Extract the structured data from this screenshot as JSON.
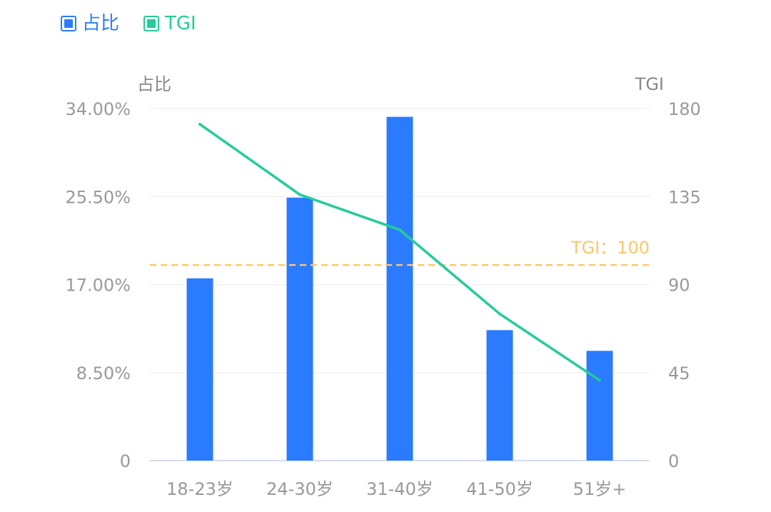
{
  "colors": {
    "bar": "#2B7BFF",
    "line": "#23CC9A",
    "reference": "#FFC766",
    "axis_text": "#999999",
    "grid": "#EEF1F6",
    "axis_line": "#D6DCE8"
  },
  "legend": {
    "bar_label": "占比",
    "line_label": "TGI"
  },
  "chart_data": {
    "type": "bar",
    "categories": [
      "18-23岁",
      "24-30岁",
      "31-40岁",
      "41-50岁",
      "51岁+"
    ],
    "series": [
      {
        "name": "占比",
        "type": "bar",
        "axis": "left",
        "values": [
          17.6,
          25.4,
          33.2,
          12.6,
          10.6
        ]
      },
      {
        "name": "TGI",
        "type": "line",
        "axis": "right",
        "values": [
          172,
          136,
          118,
          75,
          41
        ]
      }
    ],
    "y_left": {
      "label": "占比",
      "range": [
        0,
        34
      ],
      "ticks": [
        "0",
        "8.50%",
        "17.00%",
        "25.50%",
        "34.00%"
      ]
    },
    "y_right": {
      "label": "TGI",
      "range": [
        0,
        180
      ],
      "ticks": [
        "0",
        "45",
        "90",
        "135",
        "180"
      ]
    },
    "reference_line": {
      "axis": "right",
      "value": 100,
      "label": "TGI：100"
    },
    "grid": true,
    "legend_position": "top-left"
  }
}
